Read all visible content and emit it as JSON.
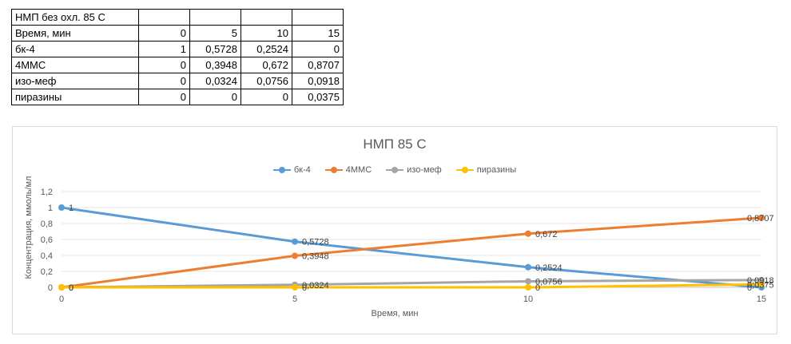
{
  "table": {
    "title": "НМП без охл. 85 С",
    "header_label": "Время, мин",
    "header_values": [
      "0",
      "5",
      "10",
      "15"
    ],
    "rows": [
      {
        "label": "бк-4",
        "values": [
          "1",
          "0,5728",
          "0,2524",
          "0"
        ]
      },
      {
        "label": "4ММС",
        "values": [
          "0",
          "0,3948",
          "0,672",
          "0,8707"
        ]
      },
      {
        "label": "изо-меф",
        "values": [
          "0",
          "0,0324",
          "0,0756",
          "0,0918"
        ]
      },
      {
        "label": "пиразины",
        "values": [
          "0",
          "0",
          "0",
          "0,0375"
        ]
      }
    ]
  },
  "chart_data": {
    "type": "line",
    "title": "НМП 85 С",
    "xlabel": "Время, мин",
    "ylabel": "Концентрация, ммоль/мл",
    "x": [
      0,
      5,
      10,
      15
    ],
    "x_ticks": [
      "0",
      "5",
      "10",
      "15"
    ],
    "ylim": [
      0,
      1.2
    ],
    "y_ticks": [
      "0",
      "0,2",
      "0,4",
      "0,6",
      "0,8",
      "1",
      "1,2"
    ],
    "legend_position": "top",
    "grid": true,
    "series": [
      {
        "name": "бк-4",
        "color": "#5b9bd5",
        "values": [
          1,
          0.5728,
          0.2524,
          0
        ],
        "labels": [
          "1",
          "0,5728",
          "0,2524",
          "0"
        ]
      },
      {
        "name": "4ММС",
        "color": "#ed7d31",
        "values": [
          0,
          0.3948,
          0.672,
          0.8707
        ],
        "labels": [
          "0",
          "0,3948",
          "0,672",
          "0,8707"
        ]
      },
      {
        "name": "изо-меф",
        "color": "#a5a5a5",
        "values": [
          0,
          0.0324,
          0.0756,
          0.0918
        ],
        "labels": [
          "0",
          "0,0324",
          "0,0756",
          "0,0918"
        ]
      },
      {
        "name": "пиразины",
        "color": "#ffc000",
        "values": [
          0,
          0,
          0,
          0.0375
        ],
        "labels": [
          "0",
          "0",
          "0",
          "0,0375"
        ]
      }
    ]
  }
}
